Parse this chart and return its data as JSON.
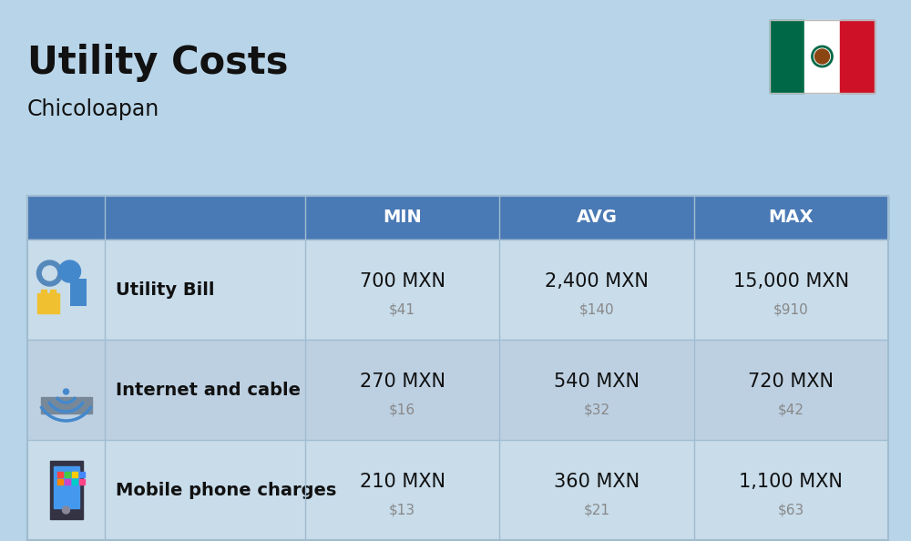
{
  "title": "Utility Costs",
  "subtitle": "Chicoloapan",
  "background_color": "#b8d4e8",
  "header_color": "#4a7ab5",
  "header_text_color": "#ffffff",
  "row_color_even": "#c8dcea",
  "row_color_odd": "#bdd0e2",
  "col_header_labels": [
    "MIN",
    "AVG",
    "MAX"
  ],
  "rows": [
    {
      "label": "Utility Bill",
      "min_mxn": "700 MXN",
      "min_usd": "$41",
      "avg_mxn": "2,400 MXN",
      "avg_usd": "$140",
      "max_mxn": "15,000 MXN",
      "max_usd": "$910"
    },
    {
      "label": "Internet and cable",
      "min_mxn": "270 MXN",
      "min_usd": "$16",
      "avg_mxn": "540 MXN",
      "avg_usd": "$32",
      "max_mxn": "720 MXN",
      "max_usd": "$42"
    },
    {
      "label": "Mobile phone charges",
      "min_mxn": "210 MXN",
      "min_usd": "$13",
      "avg_mxn": "360 MXN",
      "avg_usd": "$21",
      "max_mxn": "1,100 MXN",
      "max_usd": "$63"
    }
  ],
  "title_fontsize": 30,
  "subtitle_fontsize": 17,
  "header_fontsize": 14,
  "label_fontsize": 14,
  "value_fontsize": 15,
  "usd_fontsize": 11,
  "grid_color": "#a0bcd0",
  "flag_green": "#006847",
  "flag_white": "#ffffff",
  "flag_red": "#ce1126",
  "flag_eagle_color": "#8B6914"
}
